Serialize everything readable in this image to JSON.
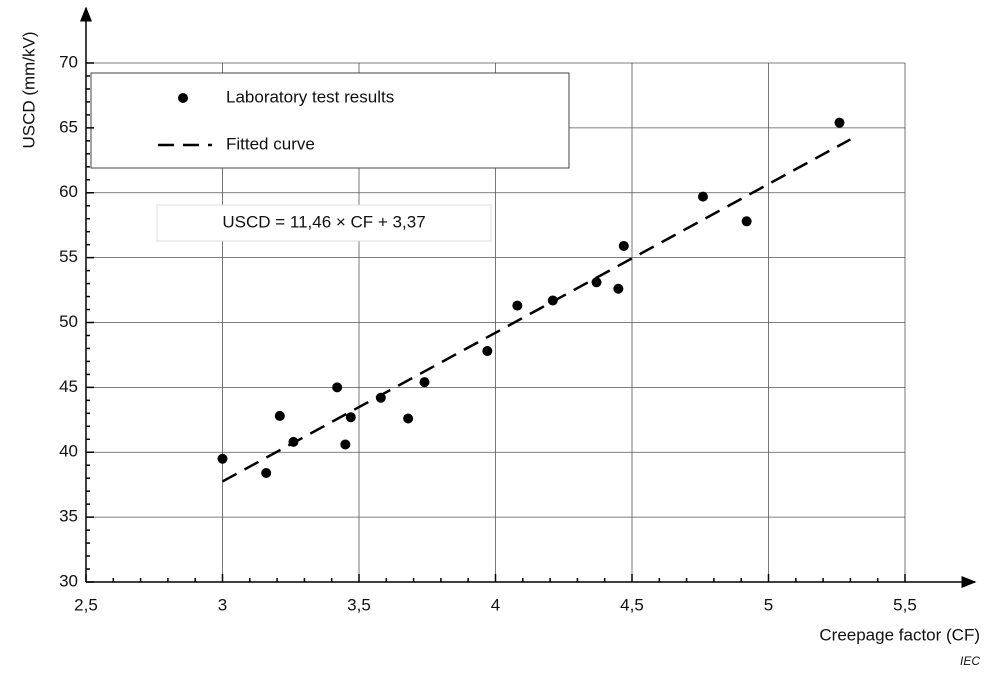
{
  "chart_data": {
    "type": "scatter",
    "x_label": "Creepage factor  (CF)",
    "y_label": "USCD (mm/kV)",
    "annotation": "USCD = 11,46 × CF + 3,37",
    "source": "IEC",
    "xlim": [
      2.5,
      5.5
    ],
    "ylim": [
      30,
      70
    ],
    "xticks": [
      {
        "value": 2.5,
        "label": "2,5"
      },
      3,
      {
        "value": 3.5,
        "label": "3,5"
      },
      4,
      {
        "value": 4.5,
        "label": "4,5"
      },
      5,
      {
        "value": 5.5,
        "label": "5,5"
      }
    ],
    "yticks": [
      30,
      35,
      40,
      45,
      50,
      55,
      60,
      65,
      70
    ],
    "grid": true,
    "legend": "upper left",
    "series": [
      {
        "name": "Laboratory test results",
        "type": "scatter",
        "color": "#000000",
        "x": [
          3.0,
          3.16,
          3.21,
          3.26,
          3.42,
          3.45,
          3.47,
          3.58,
          3.68,
          3.74,
          3.97,
          4.08,
          4.21,
          4.37,
          4.45,
          4.47,
          4.76,
          4.92,
          5.26
        ],
        "values": [
          39.5,
          38.4,
          42.8,
          40.8,
          45.0,
          40.6,
          42.7,
          44.2,
          42.6,
          45.4,
          47.8,
          51.3,
          51.7,
          53.1,
          52.6,
          55.9,
          59.7,
          57.8,
          65.4
        ]
      },
      {
        "name": "Fitted curve",
        "type": "line",
        "dashed": true,
        "color": "#000000",
        "x": [
          3.0,
          5.3
        ],
        "values": [
          37.75,
          64.11
        ]
      }
    ]
  }
}
